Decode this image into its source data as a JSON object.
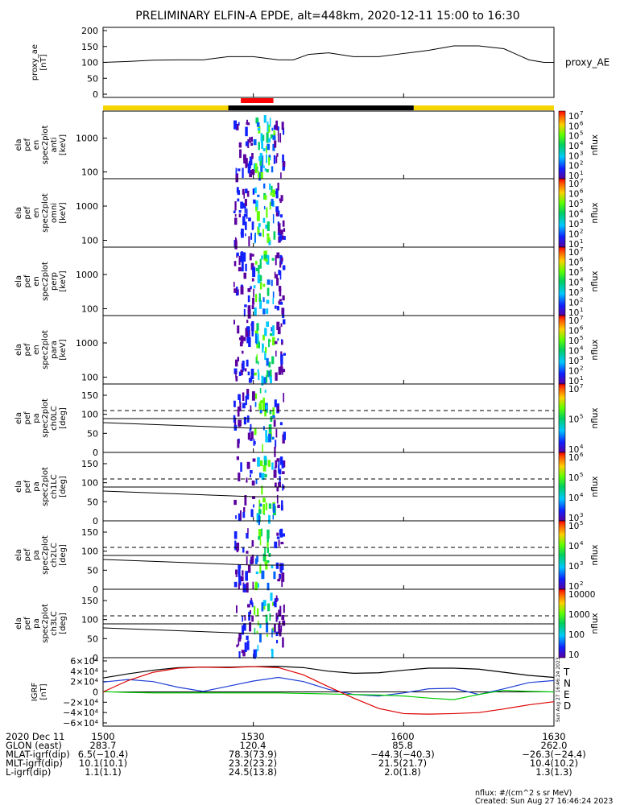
{
  "title": "PRELIMINARY ELFIN-A EPDE, alt=448km, 2020-12-11 15:00 to 16:30",
  "colors": {
    "sun": "#f5d400",
    "shadow": "#000000",
    "science": "#ff0000",
    "trace_total": "#000000",
    "trace_n": "#1f3fd6",
    "trace_e": "#00cc00",
    "trace_d": "#dd0000"
  },
  "status_bar": {
    "sun_segments": [
      [
        "15:00",
        "15:25"
      ],
      [
        "16:02",
        "16:30"
      ]
    ],
    "shadow_segments": [
      [
        "15:25",
        "16:02"
      ]
    ],
    "science_segments": [
      [
        "15:27.5",
        "15:34"
      ]
    ]
  },
  "panels": [
    {
      "id": "proxy-ae",
      "kind": "line",
      "ylabel": [
        "proxy_ae",
        "[nT]"
      ],
      "side_label": "proxy_AE",
      "yticks": [
        "200",
        "150",
        "100",
        "50",
        "0"
      ]
    },
    {
      "id": "en-anti",
      "kind": "spec",
      "ylabel": [
        "ela",
        "pef",
        "en",
        "spec2plot",
        "anti",
        "[keV]"
      ],
      "yticks": [
        "1000",
        "100"
      ],
      "cbar_ticks": [
        "10",
        "10",
        "10",
        "10",
        "10",
        "10",
        "10"
      ],
      "cbar_exp": [
        "7",
        "6",
        "5",
        "4",
        "3",
        "2",
        "1"
      ],
      "cbar_label": "nflux"
    },
    {
      "id": "en-omni",
      "kind": "spec",
      "ylabel": [
        "ela",
        "pef",
        "en",
        "spec2plot",
        "omni",
        "[keV]"
      ],
      "yticks": [
        "1000",
        "100"
      ],
      "cbar_ticks": [
        "10",
        "10",
        "10",
        "10",
        "10",
        "10",
        "10"
      ],
      "cbar_exp": [
        "7",
        "6",
        "5",
        "4",
        "3",
        "2",
        "1"
      ],
      "cbar_label": "nflux"
    },
    {
      "id": "en-perp",
      "kind": "spec",
      "ylabel": [
        "ela",
        "pef",
        "en",
        "spec2plot",
        "perp",
        "[keV]"
      ],
      "yticks": [
        "1000",
        "100"
      ],
      "cbar_ticks": [
        "10",
        "10",
        "10",
        "10",
        "10",
        "10",
        "10"
      ],
      "cbar_exp": [
        "7",
        "6",
        "5",
        "4",
        "3",
        "2",
        "1"
      ],
      "cbar_label": "nflux"
    },
    {
      "id": "en-para",
      "kind": "spec",
      "ylabel": [
        "ela",
        "pef",
        "en",
        "spec2plot",
        "para",
        "[keV]"
      ],
      "yticks": [
        "1000",
        "100"
      ],
      "cbar_ticks": [
        "10",
        "10",
        "10",
        "10",
        "10",
        "10",
        "10"
      ],
      "cbar_exp": [
        "7",
        "6",
        "5",
        "4",
        "3",
        "2",
        "1"
      ],
      "cbar_label": "nflux"
    },
    {
      "id": "pa-ch0",
      "kind": "pa",
      "ylabel": [
        "ela",
        "pef",
        "pa",
        "spec2plot",
        "ch0LC",
        "[deg]"
      ],
      "yticks": [
        "150",
        "100",
        "50",
        "0"
      ],
      "cbar_ticks": [
        "10",
        "10",
        "10"
      ],
      "cbar_exp": [
        "7",
        "5",
        "4"
      ],
      "cbar_label": "nflux"
    },
    {
      "id": "pa-ch1",
      "kind": "pa",
      "ylabel": [
        "ela",
        "pef",
        "pa",
        "spec2plot",
        "ch1LC",
        "[deg]"
      ],
      "yticks": [
        "150",
        "100",
        "50",
        "0"
      ],
      "cbar_ticks": [
        "10",
        "10",
        "10",
        "10"
      ],
      "cbar_exp": [
        "6",
        "5",
        "4",
        "3"
      ],
      "cbar_label": "nflux"
    },
    {
      "id": "pa-ch2",
      "kind": "pa",
      "ylabel": [
        "ela",
        "pef",
        "pa",
        "spec2plot",
        "ch2LC",
        "[deg]"
      ],
      "yticks": [
        "150",
        "100",
        "50",
        "0"
      ],
      "cbar_ticks": [
        "10",
        "10",
        "10",
        "10"
      ],
      "cbar_exp": [
        "5",
        "4",
        "3",
        "2"
      ],
      "cbar_label": "nflux"
    },
    {
      "id": "pa-ch3",
      "kind": "pa",
      "ylabel": [
        "ela",
        "pef",
        "pa",
        "spec2plot",
        "ch3LC",
        "[deg]"
      ],
      "yticks": [
        "150",
        "100",
        "50",
        "0"
      ],
      "cbar_plain": [
        "10000",
        "1000",
        "100",
        "10"
      ],
      "cbar_label": "nflux"
    },
    {
      "id": "igrf",
      "kind": "igrf",
      "ylabel": [
        "IGRF",
        "[nT]"
      ],
      "yticks": [
        "6×10⁴",
        "4×10⁴",
        "2×10⁴",
        "0",
        "−2×10⁴",
        "−4×10⁴",
        "−6×10⁴"
      ],
      "legend": [
        "T",
        "N",
        "E",
        "D"
      ],
      "stamp": "Sun Aug 27 16:46:24 2023"
    }
  ],
  "chart_data": [
    {
      "type": "line",
      "title": "",
      "ylabel": "proxy_ae [nT]",
      "ylim": [
        0,
        200
      ],
      "x": [
        "15:00",
        "15:05",
        "15:10",
        "15:15",
        "15:20",
        "15:25",
        "15:30",
        "15:35",
        "15:38",
        "15:41",
        "15:45",
        "15:50",
        "15:55",
        "16:00",
        "16:05",
        "16:10",
        "16:15",
        "16:20",
        "16:25",
        "16:28",
        "16:30"
      ],
      "series": [
        {
          "name": "proxy_AE",
          "values": [
            100,
            103,
            107,
            108,
            108,
            118,
            118,
            108,
            108,
            125,
            130,
            118,
            118,
            128,
            138,
            152,
            152,
            143,
            108,
            100,
            100
          ]
        }
      ]
    },
    {
      "type": "line",
      "title": "",
      "ylabel": "IGRF [nT]",
      "ylim": [
        -60000,
        60000
      ],
      "x": [
        "15:00",
        "15:05",
        "15:10",
        "15:15",
        "15:20",
        "15:25",
        "15:30",
        "15:35",
        "15:40",
        "15:45",
        "15:50",
        "15:55",
        "16:00",
        "16:05",
        "16:10",
        "16:15",
        "16:20",
        "16:25",
        "16:30"
      ],
      "series": [
        {
          "name": "T",
          "values": [
            27000,
            35000,
            42000,
            47000,
            48000,
            48000,
            49000,
            49500,
            47000,
            40000,
            36000,
            37000,
            42000,
            46000,
            46000,
            44000,
            38000,
            32000,
            28000
          ]
        },
        {
          "name": "N",
          "values": [
            19000,
            24000,
            20000,
            9000,
            1000,
            11000,
            21000,
            28000,
            20000,
            5000,
            -5000,
            -8000,
            -2000,
            6000,
            7000,
            -5000,
            6000,
            18000,
            22000
          ]
        },
        {
          "name": "E",
          "values": [
            500,
            -1000,
            -2000,
            -2000,
            -2000,
            -2000,
            -2000,
            -2000,
            -3000,
            -4000,
            -5000,
            -6000,
            -8000,
            -12000,
            -15000,
            -5000,
            3000,
            1000,
            0
          ]
        },
        {
          "name": "D",
          "values": [
            0,
            22000,
            38000,
            46000,
            48000,
            47000,
            49000,
            47000,
            33000,
            10000,
            -12000,
            -32000,
            -42000,
            -43000,
            -42000,
            -40000,
            -33000,
            -25000,
            -19000
          ]
        }
      ]
    }
  ],
  "xaxis": {
    "ticks": [
      "1500",
      "1530",
      "1600",
      "1630"
    ],
    "rows": [
      {
        "label": "2020 Dec 11",
        "values": [
          "1500",
          "1530",
          "1600",
          "1630"
        ]
      },
      {
        "label": "GLON (east)",
        "values": [
          "283.7",
          "120.4",
          "85.8",
          "262.0"
        ]
      },
      {
        "label": "MLAT-igrf(dip)",
        "values": [
          "6.5(−10.4)",
          "78.3(73.9)",
          "−44.3(−40.3)",
          "−26.3(−24.4)"
        ]
      },
      {
        "label": "MLT-igrf(dip)",
        "values": [
          "10.1(10.1)",
          "23.2(23.2)",
          "21.5(21.7)",
          "10.4(10.2)"
        ]
      },
      {
        "label": "L-igrf(dip)",
        "values": [
          "1.1(1.1)",
          "24.5(13.8)",
          "2.0(1.8)",
          "1.3(1.3)"
        ]
      }
    ]
  },
  "footer": {
    "units": "nflux: #/(cm^2 s sr MeV)",
    "created": "Created: Sun Aug 27 16:46:24 2023"
  }
}
